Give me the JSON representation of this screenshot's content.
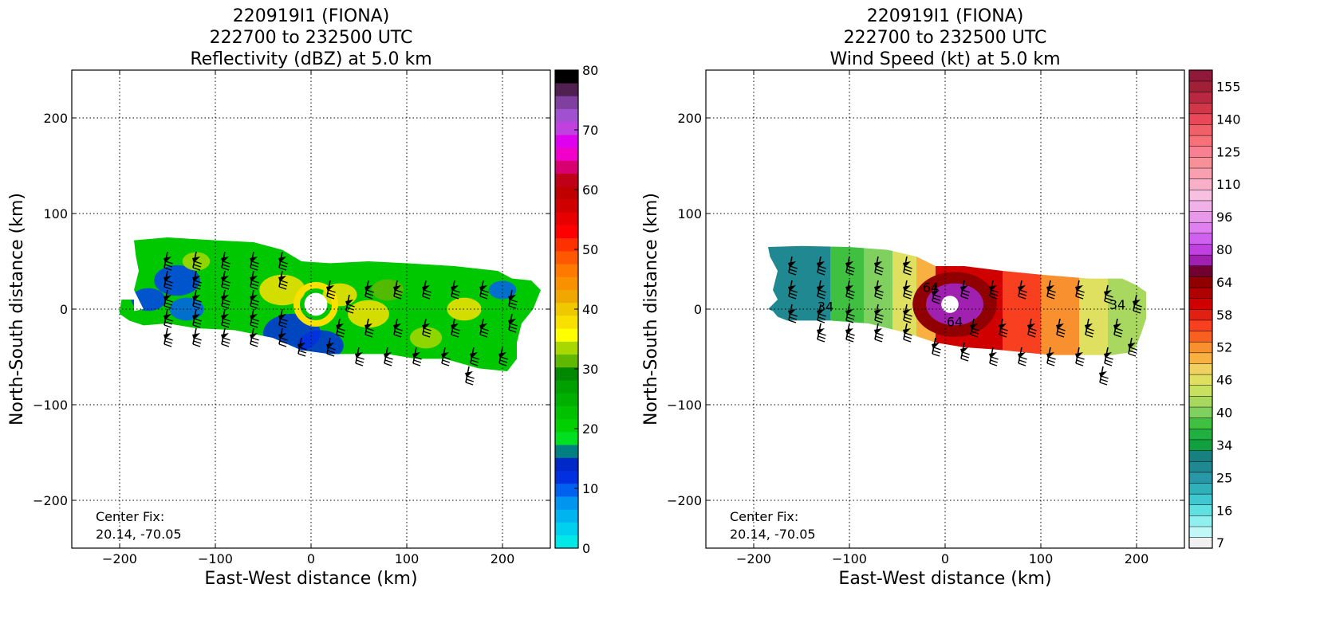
{
  "chart_data": [
    {
      "type": "heatmap",
      "title_lines": [
        "220919I1 (FIONA)",
        "222700 to 232500 UTC",
        "Reflectivity (dBZ) at 5.0 km"
      ],
      "xlabel": "East-West distance (km)",
      "ylabel": "North-South distance (km)",
      "xlim": [
        -250,
        250
      ],
      "ylim": [
        -250,
        250
      ],
      "xticks": [
        -200,
        -100,
        0,
        100,
        200
      ],
      "yticks": [
        -200,
        -100,
        0,
        100,
        200
      ],
      "xtick_labels": [
        "−200",
        "−100",
        "0",
        "100",
        "200"
      ],
      "ytick_labels": [
        "−200",
        "−100",
        "0",
        "100",
        "200"
      ],
      "grid": true,
      "annotation_lines": [
        "Center Fix:",
        "20.14, -70.05"
      ],
      "center_fix": {
        "lat": 20.14,
        "lon": -70.05
      },
      "colorbar": {
        "range": [
          0,
          80
        ],
        "tick_values": [
          0,
          10,
          20,
          30,
          40,
          50,
          60,
          70,
          80
        ],
        "tick_labels": [
          "0",
          "10",
          "20",
          "30",
          "40",
          "50",
          "60",
          "70",
          "80"
        ],
        "colors": [
          "#00e8e8",
          "#00d0f0",
          "#00b4f0",
          "#0096f0",
          "#0060f0",
          "#0030e0",
          "#0028c8",
          "#008080",
          "#00e020",
          "#00d000",
          "#00c000",
          "#00b000",
          "#00a000",
          "#008800",
          "#60b800",
          "#a8d800",
          "#ffff00",
          "#f8e000",
          "#f0c800",
          "#f0a800",
          "#f89000",
          "#ff7800",
          "#ff5800",
          "#ff3000",
          "#ff0000",
          "#e80000",
          "#d00000",
          "#c00000",
          "#c00018",
          "#d80070",
          "#f000c8",
          "#e000f0",
          "#c040e0",
          "#a050d0",
          "#8040a0",
          "#502050",
          "#000000"
        ]
      },
      "field": {
        "outline": [
          [
            -200,
            -2
          ],
          [
            -198,
            10
          ],
          [
            -185,
            10
          ],
          [
            -185,
            -2
          ],
          [
            -175,
            0
          ],
          [
            -185,
            20
          ],
          [
            -180,
            40
          ],
          [
            -183,
            55
          ],
          [
            -185,
            72
          ],
          [
            -150,
            75
          ],
          [
            -100,
            72
          ],
          [
            -60,
            70
          ],
          [
            -30,
            62
          ],
          [
            -10,
            50
          ],
          [
            20,
            48
          ],
          [
            60,
            50
          ],
          [
            100,
            48
          ],
          [
            150,
            45
          ],
          [
            195,
            40
          ],
          [
            210,
            32
          ],
          [
            230,
            30
          ],
          [
            240,
            20
          ],
          [
            232,
            0
          ],
          [
            220,
            -15
          ],
          [
            215,
            -35
          ],
          [
            215,
            -52
          ],
          [
            205,
            -65
          ],
          [
            175,
            -62
          ],
          [
            140,
            -52
          ],
          [
            110,
            -52
          ],
          [
            80,
            -47
          ],
          [
            50,
            -47
          ],
          [
            20,
            -47
          ],
          [
            -10,
            -43
          ],
          [
            -40,
            -30
          ],
          [
            -80,
            -22
          ],
          [
            -120,
            -20
          ],
          [
            -150,
            -15
          ],
          [
            -175,
            -17
          ],
          [
            -190,
            -12
          ],
          [
            -200,
            -5
          ]
        ],
        "base_color": "#00c800",
        "patches": [
          {
            "x": -140,
            "y": 30,
            "r": 20,
            "color": "#0040f0"
          },
          {
            "x": -170,
            "y": 10,
            "r": 15,
            "color": "#0040f0"
          },
          {
            "x": -130,
            "y": 0,
            "r": 15,
            "color": "#0060f0"
          },
          {
            "x": -20,
            "y": -25,
            "r": 25,
            "color": "#0030e0"
          },
          {
            "x": 10,
            "y": -38,
            "r": 20,
            "color": "#0030e0"
          },
          {
            "x": 200,
            "y": 20,
            "r": 12,
            "color": "#0060f0"
          },
          {
            "x": -30,
            "y": 20,
            "r": 20,
            "color": "#f8e000"
          },
          {
            "x": 30,
            "y": 15,
            "r": 15,
            "color": "#f8e000"
          },
          {
            "x": 60,
            "y": -5,
            "r": 18,
            "color": "#f8e000"
          },
          {
            "x": 160,
            "y": 0,
            "r": 15,
            "color": "#f8e000"
          },
          {
            "x": 120,
            "y": -30,
            "r": 14,
            "color": "#a8d800"
          },
          {
            "x": -120,
            "y": 50,
            "r": 12,
            "color": "#a8d800"
          },
          {
            "x": 80,
            "y": 20,
            "r": 14,
            "color": "#60b800"
          }
        ],
        "eye": {
          "x": 5,
          "y": 5,
          "rx": 12,
          "ry": 12,
          "color": "#ffffff",
          "ring_color": "#0040f0"
        }
      },
      "barbs": [
        [
          -150,
          60
        ],
        [
          -120,
          60
        ],
        [
          -90,
          60
        ],
        [
          -60,
          60
        ],
        [
          -30,
          60
        ],
        [
          -150,
          40
        ],
        [
          -120,
          40
        ],
        [
          -90,
          40
        ],
        [
          -60,
          40
        ],
        [
          -30,
          40
        ],
        [
          -150,
          20
        ],
        [
          -120,
          20
        ],
        [
          -90,
          20
        ],
        [
          -60,
          20
        ],
        [
          -150,
          0
        ],
        [
          -120,
          0
        ],
        [
          -90,
          0
        ],
        [
          -60,
          0
        ],
        [
          -30,
          0
        ],
        [
          -150,
          -20
        ],
        [
          -120,
          -20
        ],
        [
          -90,
          -20
        ],
        [
          -60,
          -20
        ],
        [
          -30,
          -20
        ],
        [
          20,
          30
        ],
        [
          40,
          15
        ],
        [
          60,
          30
        ],
        [
          90,
          30
        ],
        [
          120,
          30
        ],
        [
          150,
          30
        ],
        [
          180,
          30
        ],
        [
          210,
          20
        ],
        [
          30,
          -10
        ],
        [
          60,
          -10
        ],
        [
          90,
          -10
        ],
        [
          120,
          -10
        ],
        [
          150,
          -10
        ],
        [
          180,
          -10
        ],
        [
          210,
          -5
        ],
        [
          -10,
          -30
        ],
        [
          20,
          -30
        ],
        [
          50,
          -40
        ],
        [
          80,
          -40
        ],
        [
          110,
          -40
        ],
        [
          140,
          -40
        ],
        [
          170,
          -40
        ],
        [
          200,
          -40
        ],
        [
          165,
          -60
        ]
      ]
    },
    {
      "type": "heatmap",
      "title_lines": [
        "220919I1 (FIONA)",
        "222700 to 232500 UTC",
        "Wind Speed (kt) at 5.0 km"
      ],
      "xlabel": "East-West distance (km)",
      "ylabel": "North-South distance (km)",
      "xlim": [
        -250,
        250
      ],
      "ylim": [
        -250,
        250
      ],
      "xticks": [
        -200,
        -100,
        0,
        100,
        200
      ],
      "yticks": [
        -200,
        -100,
        0,
        100,
        200
      ],
      "xtick_labels": [
        "−200",
        "−100",
        "0",
        "100",
        "200"
      ],
      "ytick_labels": [
        "−200",
        "−100",
        "0",
        "100",
        "200"
      ],
      "grid": true,
      "annotation_lines": [
        "Center Fix:",
        "20.14, -70.05"
      ],
      "center_fix": {
        "lat": 20.14,
        "lon": -70.05
      },
      "colorbar": {
        "tick_labels": [
          "7",
          "16",
          "25",
          "34",
          "40",
          "46",
          "52",
          "58",
          "64",
          "80",
          "96",
          "110",
          "125",
          "140",
          "155"
        ],
        "tick_indices": [
          0.5,
          3.5,
          6.5,
          9.5,
          12.5,
          15.5,
          18.5,
          21.5,
          24.5,
          27.5,
          30.5,
          33.5,
          36.5,
          39.5,
          42.5
        ],
        "colors": [
          "#f0f0f0",
          "#c0f8f8",
          "#90f0f0",
          "#60e0e0",
          "#40c8d0",
          "#30b0b8",
          "#2898a8",
          "#208890",
          "#188080",
          "#10a040",
          "#20b040",
          "#40c040",
          "#80d060",
          "#a8d860",
          "#c8e060",
          "#e0e060",
          "#f0d060",
          "#f8b040",
          "#f89030",
          "#f86020",
          "#f84020",
          "#e02010",
          "#d00000",
          "#b00000",
          "#900000",
          "#700030",
          "#a020b0",
          "#c040e0",
          "#d060f0",
          "#e080f0",
          "#e898e8",
          "#f0b0e8",
          "#f8c0e0",
          "#f8b0c8",
          "#f8a0b0",
          "#f89098",
          "#f88090",
          "#f87078",
          "#f06068",
          "#e84858",
          "#d03848",
          "#b82840",
          "#a02038",
          "#901838"
        ]
      },
      "contour_labels": [
        {
          "x": -125,
          "y": -2,
          "text": "34"
        },
        {
          "x": 180,
          "y": 0,
          "text": "34"
        },
        {
          "x": -15,
          "y": 18,
          "text": "64"
        },
        {
          "x": 10,
          "y": -18,
          "text": "64"
        }
      ],
      "field": {
        "outline": [
          [
            -180,
            -2
          ],
          [
            -185,
            0
          ],
          [
            -175,
            10
          ],
          [
            -180,
            20
          ],
          [
            -175,
            40
          ],
          [
            -183,
            55
          ],
          [
            -185,
            65
          ],
          [
            -150,
            66
          ],
          [
            -100,
            65
          ],
          [
            -60,
            62
          ],
          [
            -30,
            55
          ],
          [
            -10,
            45
          ],
          [
            20,
            45
          ],
          [
            60,
            40
          ],
          [
            100,
            36
          ],
          [
            150,
            32
          ],
          [
            185,
            32
          ],
          [
            200,
            25
          ],
          [
            210,
            18
          ],
          [
            210,
            -10
          ],
          [
            205,
            -25
          ],
          [
            200,
            -38
          ],
          [
            195,
            -45
          ],
          [
            175,
            -48
          ],
          [
            140,
            -48
          ],
          [
            110,
            -48
          ],
          [
            80,
            -45
          ],
          [
            50,
            -42
          ],
          [
            20,
            -40
          ],
          [
            -10,
            -35
          ],
          [
            -40,
            -25
          ],
          [
            -80,
            -15
          ],
          [
            -120,
            -12
          ],
          [
            -150,
            -12
          ],
          [
            -165,
            -12
          ],
          [
            -175,
            -8
          ]
        ],
        "zones": [
          {
            "x0": -185,
            "x1": -120,
            "color": "#208890"
          },
          {
            "x0": -120,
            "x1": -85,
            "color": "#40c040"
          },
          {
            "x0": -85,
            "x1": -55,
            "color": "#80d060"
          },
          {
            "x0": -55,
            "x1": -30,
            "color": "#e0e060"
          },
          {
            "x0": -30,
            "x1": -10,
            "color": "#f8b040"
          },
          {
            "x0": -10,
            "x1": 60,
            "color": "#d00000"
          },
          {
            "x0": 60,
            "x1": 100,
            "color": "#f84020"
          },
          {
            "x0": 100,
            "x1": 140,
            "color": "#f89030"
          },
          {
            "x0": 140,
            "x1": 170,
            "color": "#e0e060"
          },
          {
            "x0": 170,
            "x1": 215,
            "color": "#a8d860"
          }
        ],
        "eye": {
          "x": 10,
          "y": 5,
          "rx": 30,
          "ry": 22,
          "color": "#a020b0",
          "inner_color": "#ffffff",
          "inner_r": 9
        }
      },
      "barbs": [
        [
          -160,
          55
        ],
        [
          -130,
          55
        ],
        [
          -100,
          55
        ],
        [
          -70,
          55
        ],
        [
          -40,
          55
        ],
        [
          -160,
          30
        ],
        [
          -130,
          30
        ],
        [
          -100,
          30
        ],
        [
          -70,
          30
        ],
        [
          -40,
          30
        ],
        [
          -160,
          5
        ],
        [
          -130,
          5
        ],
        [
          -100,
          5
        ],
        [
          -70,
          5
        ],
        [
          -40,
          5
        ],
        [
          -130,
          -15
        ],
        [
          -100,
          -15
        ],
        [
          -70,
          -15
        ],
        [
          -40,
          -15
        ],
        [
          -10,
          25
        ],
        [
          20,
          30
        ],
        [
          50,
          30
        ],
        [
          80,
          30
        ],
        [
          110,
          30
        ],
        [
          140,
          30
        ],
        [
          170,
          25
        ],
        [
          200,
          15
        ],
        [
          30,
          -10
        ],
        [
          60,
          -10
        ],
        [
          90,
          -10
        ],
        [
          120,
          -10
        ],
        [
          150,
          -10
        ],
        [
          180,
          -10
        ],
        [
          -10,
          -30
        ],
        [
          20,
          -35
        ],
        [
          50,
          -40
        ],
        [
          80,
          -40
        ],
        [
          110,
          -40
        ],
        [
          140,
          -40
        ],
        [
          170,
          -40
        ],
        [
          195,
          -30
        ],
        [
          165,
          -60
        ]
      ]
    }
  ]
}
